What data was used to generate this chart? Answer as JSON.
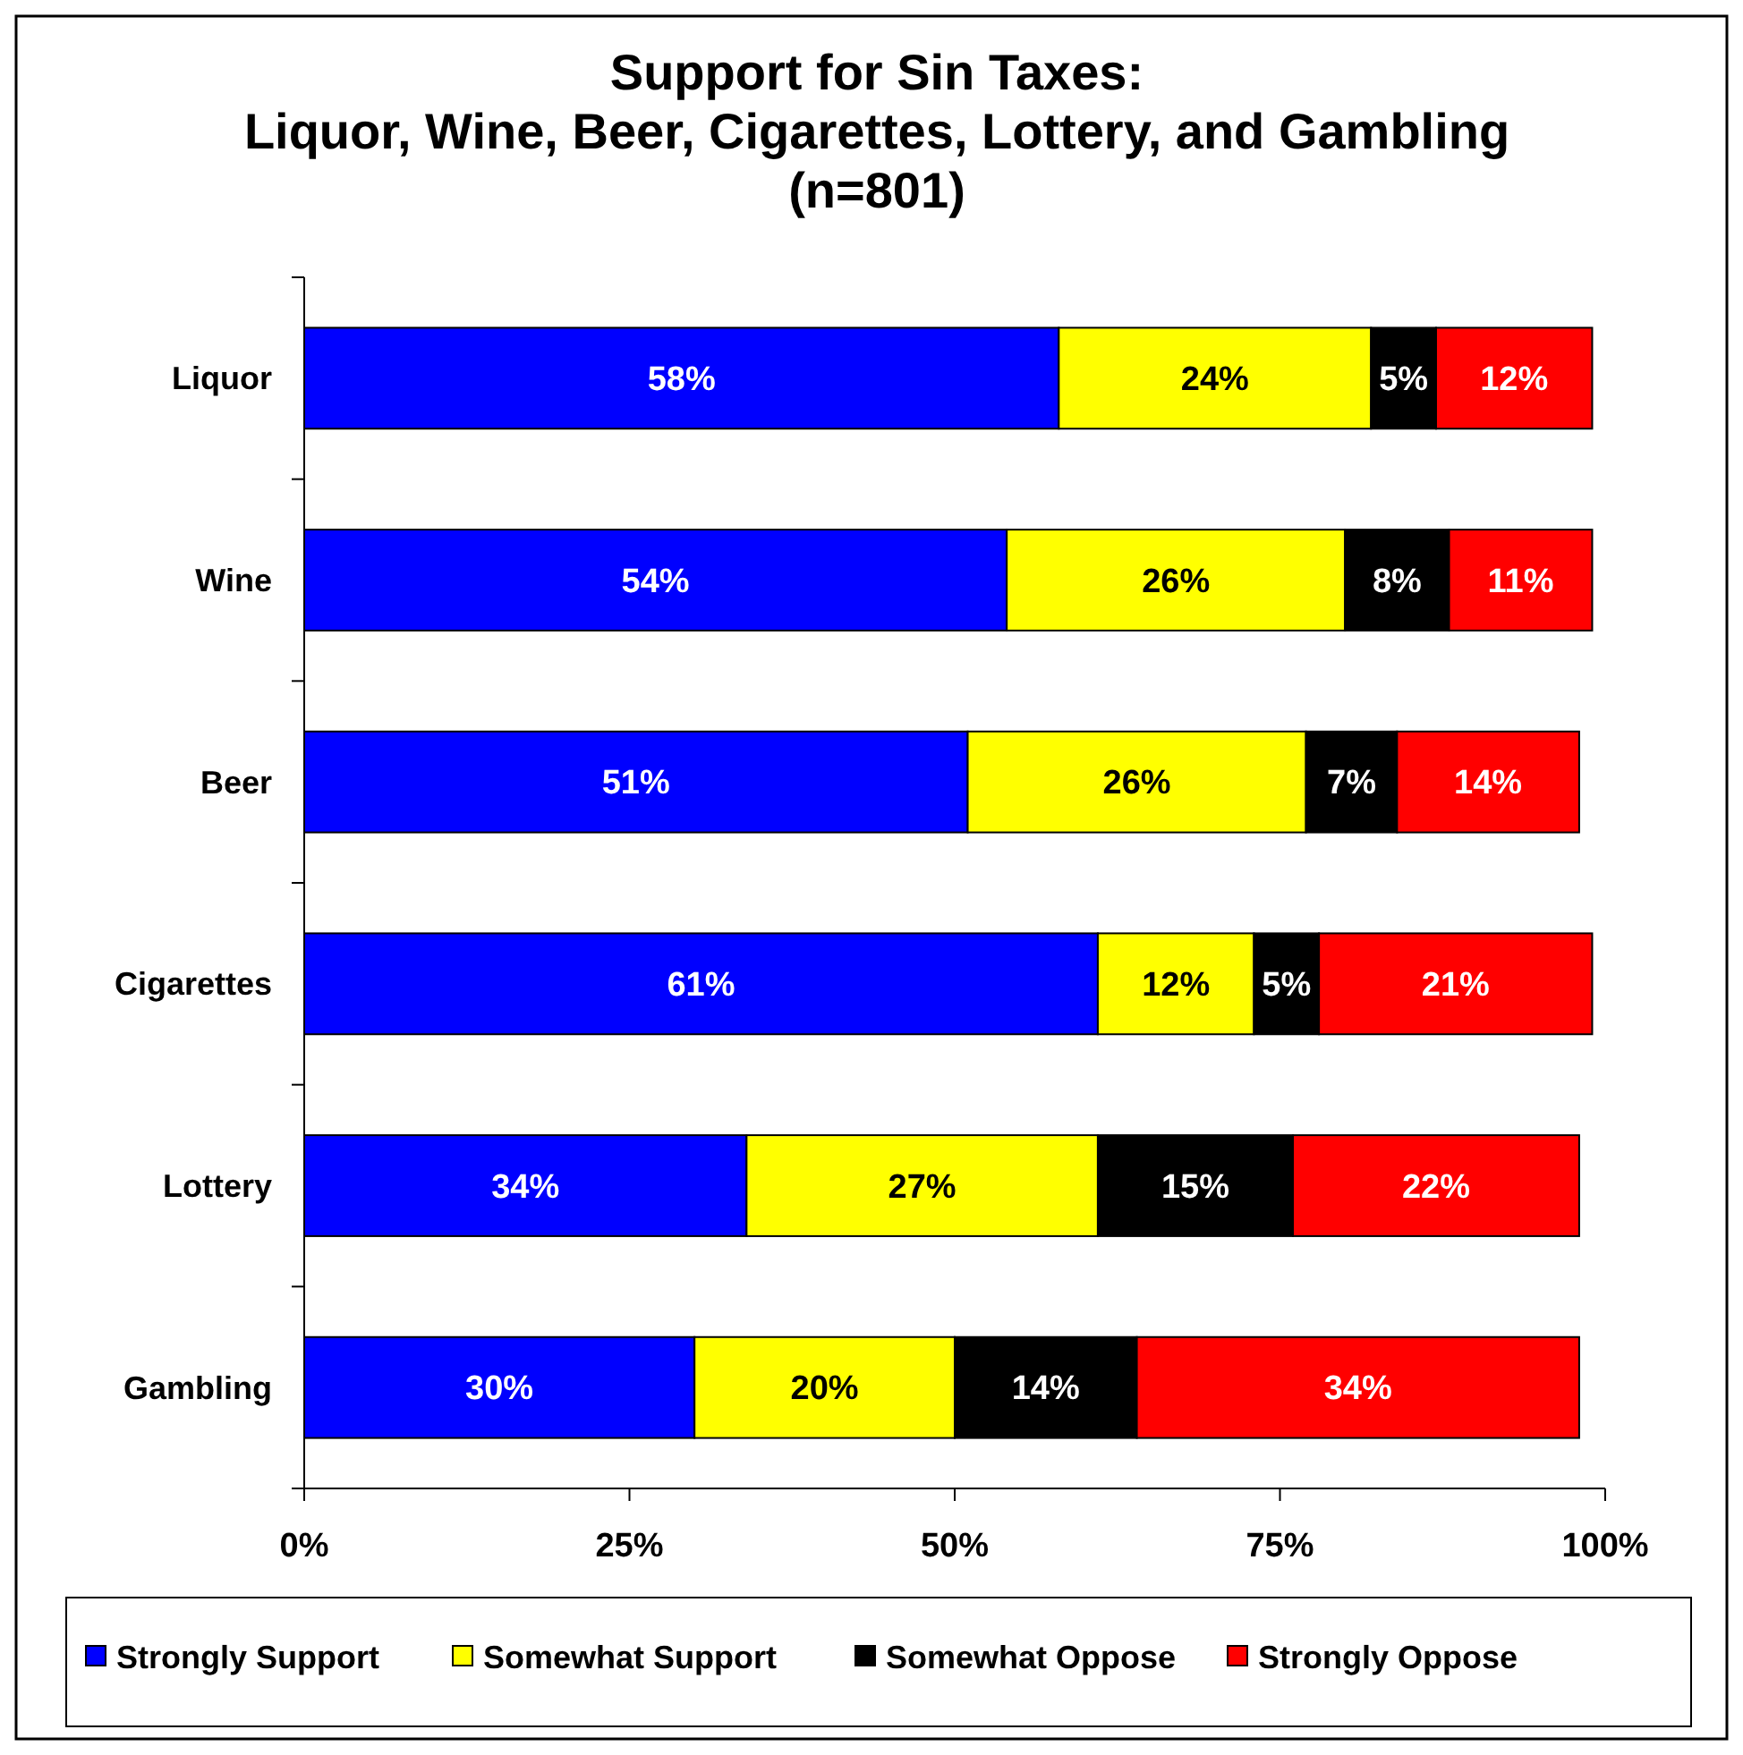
{
  "chart_data": {
    "type": "bar",
    "orientation": "horizontal",
    "stacked": true,
    "title": "Support for Sin Taxes:\nLiquor, Wine, Beer, Cigarettes, Lottery, and Gambling\n(n=801)",
    "categories": [
      "Liquor",
      "Wine",
      "Beer",
      "Cigarettes",
      "Lottery",
      "Gambling"
    ],
    "series": [
      {
        "name": "Strongly Support",
        "color": "#0000ff",
        "values": [
          58,
          54,
          51,
          61,
          34,
          30
        ],
        "value_labels": [
          "58%",
          "54%",
          "51%",
          "61%",
          "34%",
          "30%"
        ]
      },
      {
        "name": "Somewhat Support",
        "color": "#ffff00",
        "values": [
          24,
          26,
          26,
          12,
          27,
          20
        ],
        "value_labels": [
          "24%",
          "26%",
          "26%",
          "12%",
          "27%",
          "20%"
        ]
      },
      {
        "name": "Somewhat Oppose",
        "color": "#000000",
        "values": [
          5,
          8,
          7,
          5,
          15,
          14
        ],
        "value_labels": [
          "5%",
          "8%",
          "7%",
          "5%",
          "15%",
          "14%"
        ]
      },
      {
        "name": "Strongly Oppose",
        "color": "#ff0000",
        "values": [
          12,
          11,
          14,
          21,
          22,
          34
        ],
        "value_labels": [
          "12%",
          "11%",
          "14%",
          "21%",
          "22%",
          "34%"
        ]
      }
    ],
    "xlim": [
      0,
      100
    ],
    "xticks": [
      {
        "value": 0,
        "label": "0%"
      },
      {
        "value": 25,
        "label": "25%"
      },
      {
        "value": 50,
        "label": "50%"
      },
      {
        "value": 75,
        "label": "75%"
      },
      {
        "value": 100,
        "label": "100%"
      }
    ],
    "grid": false,
    "legend": "bottom"
  }
}
